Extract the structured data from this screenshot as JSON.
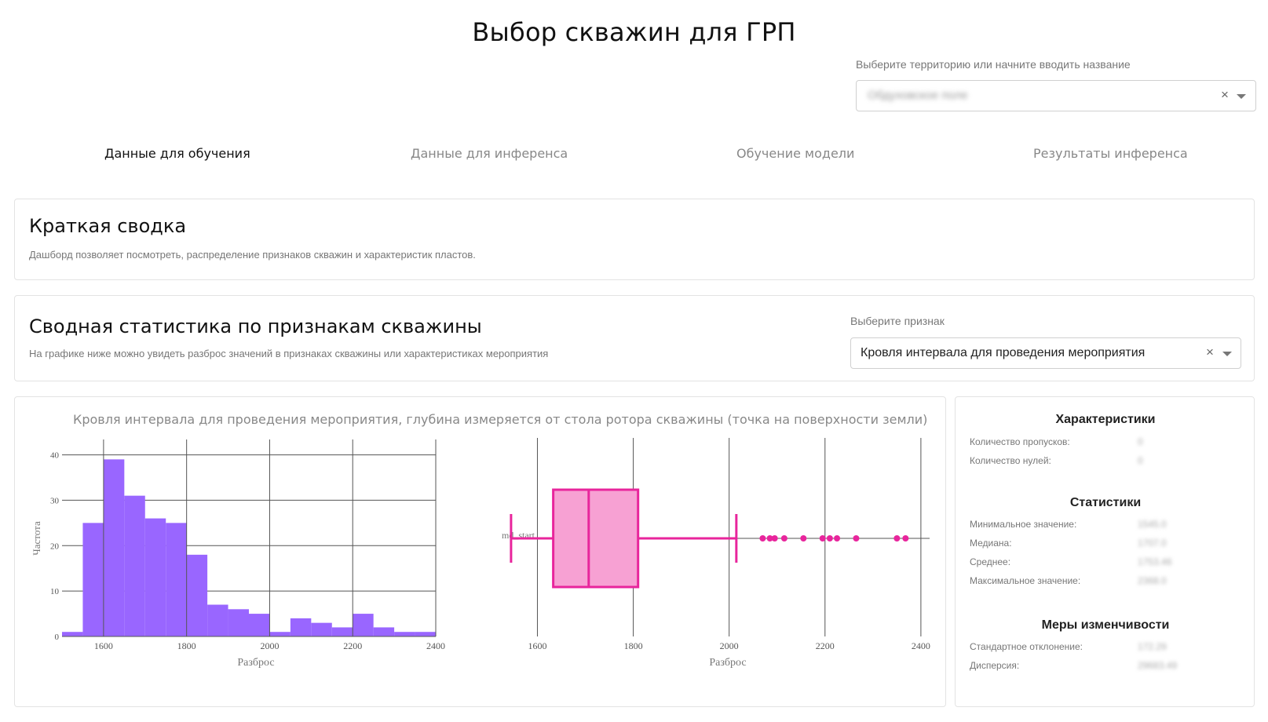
{
  "page": {
    "title": "Выбор скважин для ГРП"
  },
  "territory": {
    "label": "Выберите территорию или начните вводить название",
    "value": "Обдуховское поле",
    "clear": "×"
  },
  "tabs": [
    {
      "label": "Данные для обучения",
      "active": true
    },
    {
      "label": "Данные для инференса",
      "active": false
    },
    {
      "label": "Обучение модели",
      "active": false
    },
    {
      "label": "Результаты инференса",
      "active": false
    }
  ],
  "summary": {
    "title": "Краткая сводка",
    "description": "Дашборд позволяет посмотреть, распределение признаков скважин и характеристик пластов."
  },
  "stats": {
    "title": "Сводная статистика по признакам скважины",
    "description": "На графике ниже можно увидеть разброс значений в признаках скважины или характеристиках мероприятия",
    "feature_label": "Выберите признак",
    "feature_value": "Кровля интервала для проведения мероприятия",
    "clear": "×"
  },
  "side": {
    "characteristics": {
      "title": "Характеристики",
      "rows": [
        {
          "label": "Количество пропусков:",
          "value": "0"
        },
        {
          "label": "Количество нулей:",
          "value": "0"
        }
      ]
    },
    "statistics": {
      "title": "Статистики",
      "rows": [
        {
          "label": "Минимальное значение:",
          "value": "1545.0"
        },
        {
          "label": "Медиана:",
          "value": "1707.0"
        },
        {
          "label": "Среднее:",
          "value": "1753.46"
        },
        {
          "label": "Максимальное значение:",
          "value": "2368.0"
        }
      ]
    },
    "variability": {
      "title": "Меры изменчивости",
      "rows": [
        {
          "label": "Стандартное отклонение:",
          "value": "172.29"
        },
        {
          "label": "Дисперсия:",
          "value": "29683.49"
        }
      ]
    }
  },
  "chart_data": [
    {
      "type": "bar",
      "title": "Кровля интервала для проведения мероприятия, глубина измеряется от стола ротора скважины (точка на поверхности земли)",
      "xlabel": "Разброс",
      "ylabel": "Частота",
      "xlim": [
        1500,
        2400
      ],
      "ylim": [
        0,
        42
      ],
      "xticks": [
        1600,
        1800,
        2000,
        2200,
        2400
      ],
      "yticks": [
        0,
        10,
        20,
        30,
        40
      ],
      "bin_width": 50,
      "bins": [
        {
          "x0": 1500,
          "x1": 1550,
          "count": 1
        },
        {
          "x0": 1550,
          "x1": 1600,
          "count": 25
        },
        {
          "x0": 1600,
          "x1": 1650,
          "count": 39
        },
        {
          "x0": 1650,
          "x1": 1700,
          "count": 31
        },
        {
          "x0": 1700,
          "x1": 1750,
          "count": 26
        },
        {
          "x0": 1750,
          "x1": 1800,
          "count": 25
        },
        {
          "x0": 1800,
          "x1": 1850,
          "count": 18
        },
        {
          "x0": 1850,
          "x1": 1900,
          "count": 7
        },
        {
          "x0": 1900,
          "x1": 1950,
          "count": 6
        },
        {
          "x0": 1950,
          "x1": 2000,
          "count": 5
        },
        {
          "x0": 2000,
          "x1": 2050,
          "count": 1
        },
        {
          "x0": 2050,
          "x1": 2100,
          "count": 4
        },
        {
          "x0": 2100,
          "x1": 2150,
          "count": 3
        },
        {
          "x0": 2150,
          "x1": 2200,
          "count": 2
        },
        {
          "x0": 2200,
          "x1": 2250,
          "count": 5
        },
        {
          "x0": 2250,
          "x1": 2300,
          "count": 2
        },
        {
          "x0": 2300,
          "x1": 2350,
          "count": 1
        },
        {
          "x0": 2350,
          "x1": 2400,
          "count": 1
        }
      ],
      "color": "#9966ff",
      "grid": true
    },
    {
      "type": "box",
      "xlabel": "Разброс",
      "category": "md_start",
      "xlim": [
        1460,
        2410
      ],
      "xticks": [
        1600,
        1800,
        2000,
        2200,
        2400
      ],
      "whisker_low": 1545,
      "q1": 1633,
      "median": 1707,
      "q3": 1810,
      "whisker_high": 2015,
      "outliers": [
        2070,
        2085,
        2095,
        2115,
        2155,
        2195,
        2210,
        2225,
        2265,
        2350,
        2368
      ],
      "color": "#e8259c",
      "fill": "#f7a1d3",
      "grid": true
    }
  ]
}
